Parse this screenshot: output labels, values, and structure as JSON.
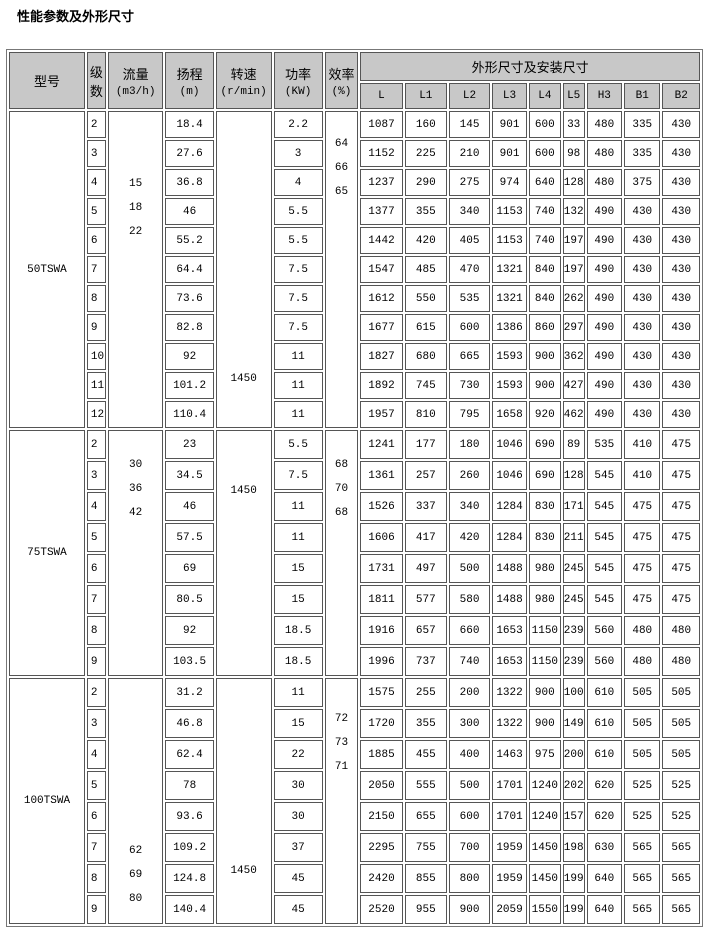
{
  "title": "性能参数及外形尺寸",
  "headers": {
    "model": "型号",
    "stage": [
      "级",
      "数"
    ],
    "flow": [
      "流量",
      "(m3/h)"
    ],
    "head": [
      "扬程",
      "(m)"
    ],
    "speed": [
      "转速",
      "(r/min)"
    ],
    "power": [
      "功率",
      "(KW)"
    ],
    "efficiency": [
      "效率",
      "(%)"
    ],
    "dims": "外形尺寸及安装尺寸",
    "dim_cols": [
      "L",
      "L1",
      "L2",
      "L3",
      "L4",
      "L5",
      "H3",
      "B1",
      "B2"
    ]
  },
  "sections": [
    {
      "model": "50TSWA",
      "flow": [
        "15",
        "18",
        "22"
      ],
      "speed": "1450",
      "efficiency": [
        "64",
        "66",
        "65"
      ],
      "rows": [
        [
          "2",
          "18.4",
          "2.2",
          "1087",
          "160",
          "145",
          "901",
          "600",
          "33",
          "480",
          "335",
          "430"
        ],
        [
          "3",
          "27.6",
          "3",
          "1152",
          "225",
          "210",
          "901",
          "600",
          "98",
          "480",
          "335",
          "430"
        ],
        [
          "4",
          "36.8",
          "4",
          "1237",
          "290",
          "275",
          "974",
          "640",
          "128",
          "480",
          "375",
          "430"
        ],
        [
          "5",
          "46",
          "5.5",
          "1377",
          "355",
          "340",
          "1153",
          "740",
          "132",
          "490",
          "430",
          "430"
        ],
        [
          "6",
          "55.2",
          "5.5",
          "1442",
          "420",
          "405",
          "1153",
          "740",
          "197",
          "490",
          "430",
          "430"
        ],
        [
          "7",
          "64.4",
          "7.5",
          "1547",
          "485",
          "470",
          "1321",
          "840",
          "197",
          "490",
          "430",
          "430"
        ],
        [
          "8",
          "73.6",
          "7.5",
          "1612",
          "550",
          "535",
          "1321",
          "840",
          "262",
          "490",
          "430",
          "430"
        ],
        [
          "9",
          "82.8",
          "7.5",
          "1677",
          "615",
          "600",
          "1386",
          "860",
          "297",
          "490",
          "430",
          "430"
        ],
        [
          "10",
          "92",
          "11",
          "1827",
          "680",
          "665",
          "1593",
          "900",
          "362",
          "490",
          "430",
          "430"
        ],
        [
          "11",
          "101.2",
          "11",
          "1892",
          "745",
          "730",
          "1593",
          "900",
          "427",
          "490",
          "430",
          "430"
        ],
        [
          "12",
          "110.4",
          "11",
          "1957",
          "810",
          "795",
          "1658",
          "920",
          "462",
          "490",
          "430",
          "430"
        ]
      ]
    },
    {
      "model": "75TSWA",
      "flow": [
        "30",
        "36",
        "42"
      ],
      "speed": "1450",
      "efficiency": [
        "68",
        "70",
        "68"
      ],
      "rows": [
        [
          "2",
          "23",
          "5.5",
          "1241",
          "177",
          "180",
          "1046",
          "690",
          "89",
          "535",
          "410",
          "475"
        ],
        [
          "3",
          "34.5",
          "7.5",
          "1361",
          "257",
          "260",
          "1046",
          "690",
          "128",
          "545",
          "410",
          "475"
        ],
        [
          "4",
          "46",
          "11",
          "1526",
          "337",
          "340",
          "1284",
          "830",
          "171",
          "545",
          "475",
          "475"
        ],
        [
          "5",
          "57.5",
          "11",
          "1606",
          "417",
          "420",
          "1284",
          "830",
          "211",
          "545",
          "475",
          "475"
        ],
        [
          "6",
          "69",
          "15",
          "1731",
          "497",
          "500",
          "1488",
          "980",
          "245",
          "545",
          "475",
          "475"
        ],
        [
          "7",
          "80.5",
          "15",
          "1811",
          "577",
          "580",
          "1488",
          "980",
          "245",
          "545",
          "475",
          "475"
        ],
        [
          "8",
          "92",
          "18.5",
          "1916",
          "657",
          "660",
          "1653",
          "1150",
          "239",
          "560",
          "480",
          "480"
        ],
        [
          "9",
          "103.5",
          "18.5",
          "1996",
          "737",
          "740",
          "1653",
          "1150",
          "239",
          "560",
          "480",
          "480"
        ]
      ]
    },
    {
      "model": "100TSWA",
      "flow": [
        "62",
        "69",
        "80"
      ],
      "speed": "1450",
      "efficiency": [
        "72",
        "73",
        "71"
      ],
      "rows": [
        [
          "2",
          "31.2",
          "11",
          "1575",
          "255",
          "200",
          "1322",
          "900",
          "100",
          "610",
          "505",
          "505"
        ],
        [
          "3",
          "46.8",
          "15",
          "1720",
          "355",
          "300",
          "1322",
          "900",
          "149",
          "610",
          "505",
          "505"
        ],
        [
          "4",
          "62.4",
          "22",
          "1885",
          "455",
          "400",
          "1463",
          "975",
          "200",
          "610",
          "505",
          "505"
        ],
        [
          "5",
          "78",
          "30",
          "2050",
          "555",
          "500",
          "1701",
          "1240",
          "202",
          "620",
          "525",
          "525"
        ],
        [
          "6",
          "93.6",
          "30",
          "2150",
          "655",
          "600",
          "1701",
          "1240",
          "157",
          "620",
          "525",
          "525"
        ],
        [
          "7",
          "109.2",
          "37",
          "2295",
          "755",
          "700",
          "1959",
          "1450",
          "198",
          "630",
          "565",
          "565"
        ],
        [
          "8",
          "124.8",
          "45",
          "2420",
          "855",
          "800",
          "1959",
          "1450",
          "199",
          "640",
          "565",
          "565"
        ],
        [
          "9",
          "140.4",
          "45",
          "2520",
          "955",
          "900",
          "2059",
          "1550",
          "199",
          "640",
          "565",
          "565"
        ]
      ]
    }
  ]
}
